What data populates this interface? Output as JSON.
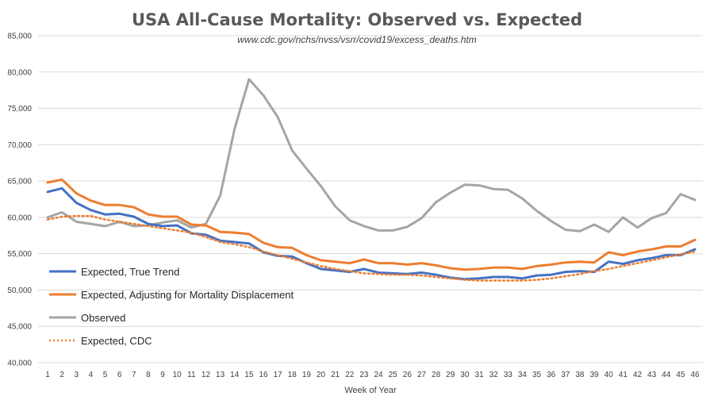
{
  "chart_data": {
    "type": "line",
    "title": "USA All-Cause Mortality: Observed vs. Expected",
    "subtitle": "www.cdc.gov/nchs/nvss/vsrr/covid19/excess_deaths.htm",
    "xlabel": "Week of Year",
    "ylabel": "",
    "ylim": [
      40000,
      85000
    ],
    "yticks": [
      40000,
      45000,
      50000,
      55000,
      60000,
      65000,
      70000,
      75000,
      80000,
      85000
    ],
    "ytick_labels": [
      "40,000",
      "45,000",
      "50,000",
      "55,000",
      "60,000",
      "65,000",
      "70,000",
      "75,000",
      "80,000",
      "85,000"
    ],
    "categories": [
      "1",
      "2",
      "3",
      "4",
      "5",
      "6",
      "7",
      "8",
      "9",
      "10",
      "11",
      "12",
      "13",
      "14",
      "15",
      "16",
      "17",
      "18",
      "19",
      "20",
      "21",
      "22",
      "23",
      "24",
      "25",
      "26",
      "27",
      "28",
      "29",
      "30",
      "31",
      "32",
      "33",
      "34",
      "35",
      "36",
      "37",
      "38",
      "39",
      "40",
      "41",
      "42",
      "43",
      "44",
      "45",
      "46"
    ],
    "grid": true,
    "legend_position": "lower-left",
    "series": [
      {
        "name": "Expected, True Trend",
        "color": "#4472c4",
        "style": "solid",
        "values": [
          63500,
          64000,
          62000,
          61000,
          60400,
          60500,
          60100,
          59100,
          58800,
          58900,
          57800,
          57600,
          56800,
          56600,
          56400,
          55200,
          54700,
          54600,
          53700,
          52900,
          52700,
          52500,
          52900,
          52400,
          52300,
          52200,
          52400,
          52100,
          51700,
          51500,
          51600,
          51800,
          51800,
          51600,
          52000,
          52100,
          52500,
          52600,
          52500,
          53900,
          53600,
          54100,
          54400,
          54800,
          54800,
          55600
        ]
      },
      {
        "name": "Expected, Adjusting for Mortality Displacement",
        "color": "#ed7d31",
        "style": "solid",
        "values": [
          64800,
          65200,
          63300,
          62300,
          61700,
          61700,
          61400,
          60400,
          60100,
          60100,
          59000,
          58900,
          58000,
          57900,
          57700,
          56500,
          55900,
          55800,
          54800,
          54100,
          53900,
          53700,
          54200,
          53700,
          53700,
          53500,
          53700,
          53400,
          53000,
          52800,
          52900,
          53100,
          53100,
          52900,
          53300,
          53500,
          53800,
          53900,
          53800,
          55200,
          54800,
          55300,
          55600,
          56000,
          56000,
          56900
        ]
      },
      {
        "name": "Observed",
        "color": "#a5a5a5",
        "style": "solid",
        "values": [
          60000,
          60700,
          59400,
          59100,
          58800,
          59400,
          58800,
          58900,
          59300,
          59600,
          58600,
          59100,
          63000,
          72200,
          79000,
          76800,
          73800,
          69200,
          66700,
          64300,
          61500,
          59600,
          58800,
          58200,
          58200,
          58700,
          59900,
          62100,
          63400,
          64500,
          64400,
          63900,
          63800,
          62600,
          60900,
          59500,
          58300,
          58100,
          59000,
          58000,
          60000,
          58600,
          59900,
          60600,
          63200,
          62400
        ]
      },
      {
        "name": "Expected, CDC",
        "color": "#ed7d31",
        "style": "dotted",
        "values": [
          59700,
          60100,
          60200,
          60200,
          59700,
          59400,
          59100,
          58800,
          58500,
          58200,
          57900,
          57300,
          56600,
          56300,
          55900,
          55300,
          54800,
          54300,
          53800,
          53300,
          52900,
          52600,
          52300,
          52200,
          52100,
          52100,
          52000,
          51800,
          51600,
          51400,
          51300,
          51300,
          51300,
          51300,
          51400,
          51600,
          51900,
          52200,
          52600,
          52900,
          53300,
          53700,
          54100,
          54500,
          54900,
          55300
        ]
      }
    ]
  }
}
